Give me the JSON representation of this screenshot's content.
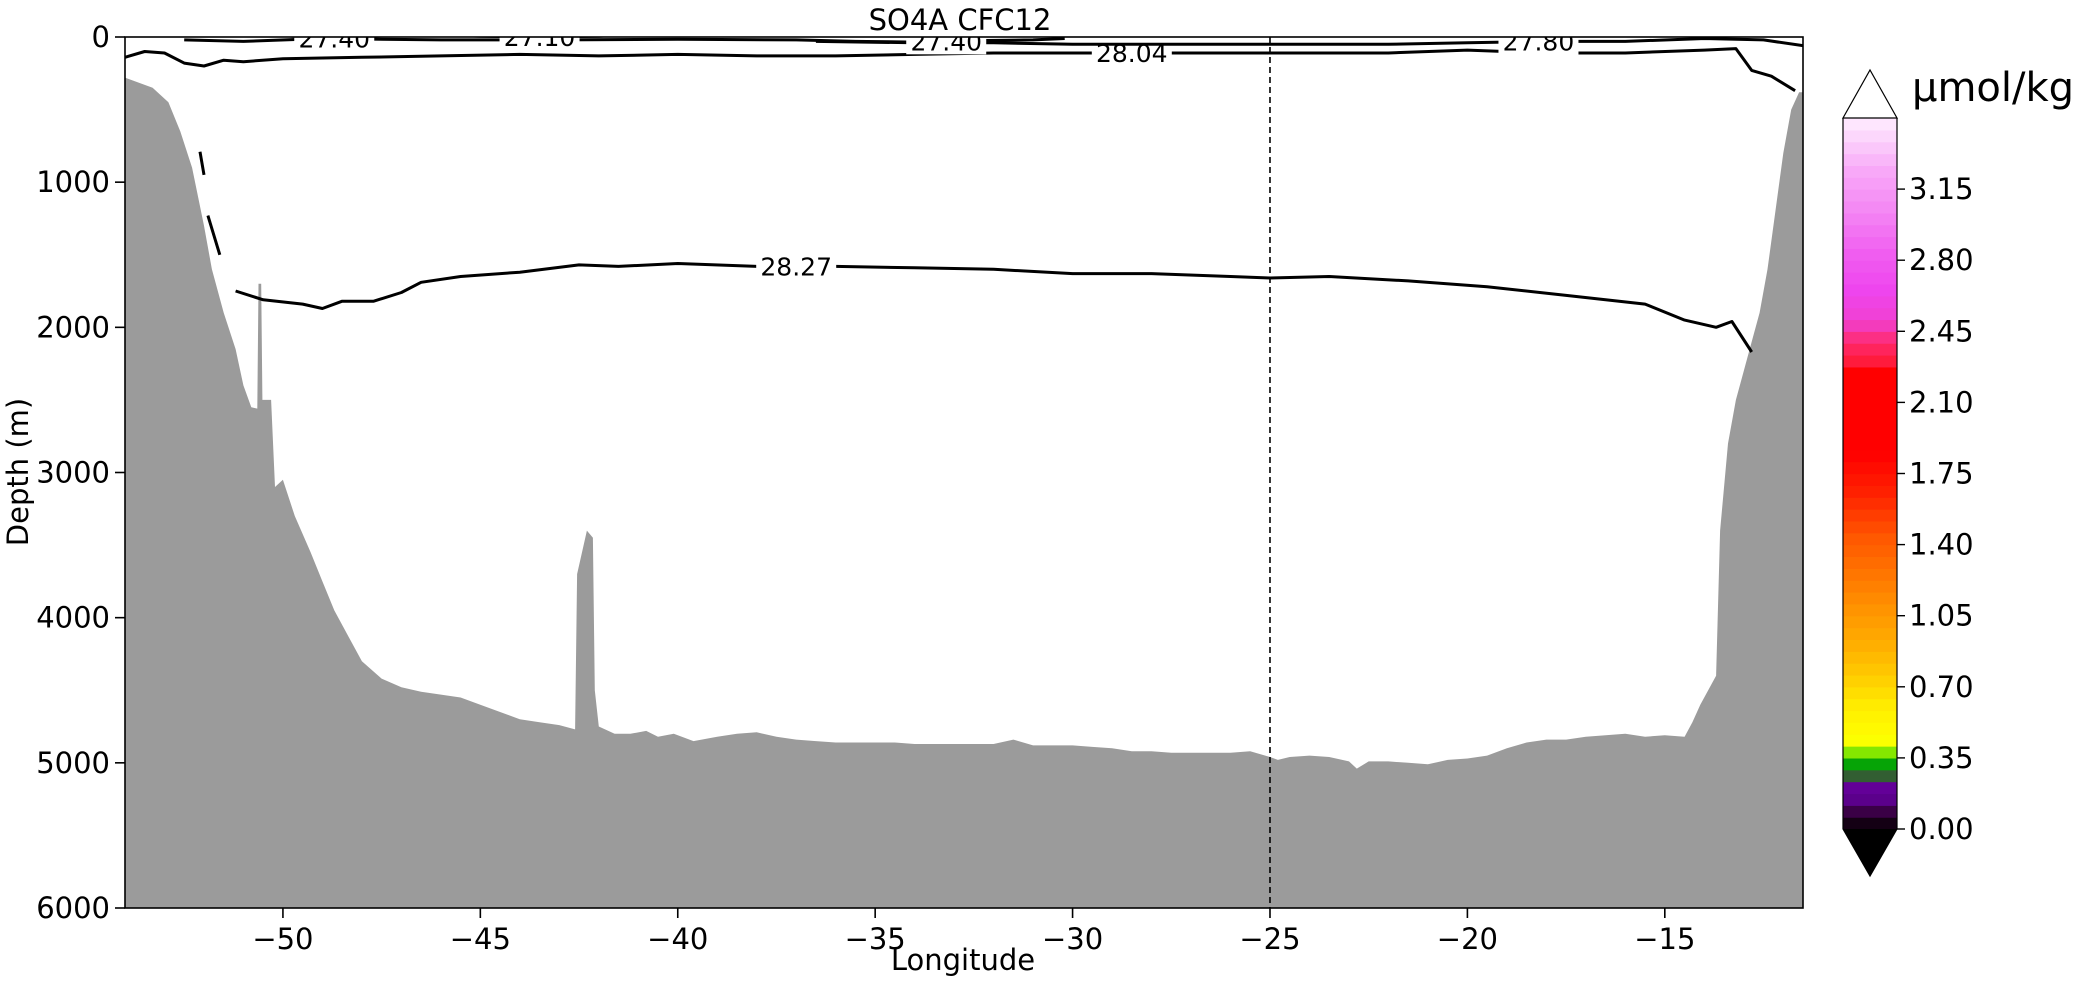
{
  "chart_data": {
    "type": "contour",
    "title": "SO4A CFC12",
    "xlabel": "Longitude",
    "ylabel": "Depth (m)",
    "xlim": [
      -54,
      -11.5
    ],
    "ylim": [
      6000,
      0
    ],
    "xticks": [
      -50,
      -45,
      -40,
      -35,
      -30,
      -25,
      -20,
      -15
    ],
    "xtick_labels": [
      "−50",
      "−45",
      "−40",
      "−35",
      "−30",
      "−25",
      "−20",
      "−15"
    ],
    "yticks": [
      0,
      1000,
      2000,
      3000,
      4000,
      5000,
      6000
    ],
    "ytick_labels": [
      "0",
      "1000",
      "2000",
      "3000",
      "4000",
      "5000",
      "6000"
    ],
    "reference_line": {
      "x": -25,
      "style": "dashed"
    },
    "bathymetry": {
      "color": "#9b9b9b",
      "points": [
        [
          -54.0,
          280
        ],
        [
          -53.3,
          350
        ],
        [
          -52.9,
          450
        ],
        [
          -52.6,
          650
        ],
        [
          -52.3,
          900
        ],
        [
          -52.0,
          1300
        ],
        [
          -51.8,
          1600
        ],
        [
          -51.5,
          1900
        ],
        [
          -51.2,
          2150
        ],
        [
          -51.0,
          2400
        ],
        [
          -50.8,
          2550
        ],
        [
          -50.65,
          2560
        ],
        [
          -50.62,
          1700
        ],
        [
          -50.55,
          1700
        ],
        [
          -50.52,
          2500
        ],
        [
          -50.3,
          2500
        ],
        [
          -50.2,
          3100
        ],
        [
          -50.0,
          3050
        ],
        [
          -49.7,
          3300
        ],
        [
          -49.3,
          3550
        ],
        [
          -49.0,
          3750
        ],
        [
          -48.7,
          3950
        ],
        [
          -48.3,
          4150
        ],
        [
          -48.0,
          4300
        ],
        [
          -47.5,
          4420
        ],
        [
          -47.0,
          4480
        ],
        [
          -46.5,
          4510
        ],
        [
          -46.0,
          4530
        ],
        [
          -45.5,
          4550
        ],
        [
          -45.0,
          4600
        ],
        [
          -44.5,
          4650
        ],
        [
          -44.0,
          4700
        ],
        [
          -43.5,
          4720
        ],
        [
          -43.0,
          4740
        ],
        [
          -42.6,
          4770
        ],
        [
          -42.55,
          3700
        ],
        [
          -42.3,
          3400
        ],
        [
          -42.15,
          3450
        ],
        [
          -42.1,
          4500
        ],
        [
          -42.0,
          4750
        ],
        [
          -41.6,
          4800
        ],
        [
          -41.2,
          4800
        ],
        [
          -40.8,
          4780
        ],
        [
          -40.5,
          4820
        ],
        [
          -40.1,
          4800
        ],
        [
          -39.6,
          4850
        ],
        [
          -39.0,
          4820
        ],
        [
          -38.5,
          4800
        ],
        [
          -38.0,
          4790
        ],
        [
          -37.5,
          4820
        ],
        [
          -37.0,
          4840
        ],
        [
          -36.5,
          4850
        ],
        [
          -36.0,
          4860
        ],
        [
          -35.5,
          4860
        ],
        [
          -35.0,
          4860
        ],
        [
          -34.5,
          4860
        ],
        [
          -34.0,
          4870
        ],
        [
          -33.5,
          4870
        ],
        [
          -33.0,
          4870
        ],
        [
          -32.5,
          4870
        ],
        [
          -32.0,
          4870
        ],
        [
          -31.5,
          4840
        ],
        [
          -31.0,
          4880
        ],
        [
          -30.5,
          4880
        ],
        [
          -30.0,
          4880
        ],
        [
          -29.5,
          4890
        ],
        [
          -29.0,
          4900
        ],
        [
          -28.5,
          4920
        ],
        [
          -28.0,
          4920
        ],
        [
          -27.5,
          4930
        ],
        [
          -27.0,
          4930
        ],
        [
          -26.5,
          4930
        ],
        [
          -26.0,
          4930
        ],
        [
          -25.5,
          4920
        ],
        [
          -25.0,
          4960
        ],
        [
          -24.8,
          4980
        ],
        [
          -24.5,
          4960
        ],
        [
          -24.0,
          4950
        ],
        [
          -23.5,
          4960
        ],
        [
          -23.0,
          4990
        ],
        [
          -22.8,
          5040
        ],
        [
          -22.5,
          4990
        ],
        [
          -22.0,
          4990
        ],
        [
          -21.5,
          5000
        ],
        [
          -21.0,
          5010
        ],
        [
          -20.5,
          4980
        ],
        [
          -20.0,
          4970
        ],
        [
          -19.5,
          4950
        ],
        [
          -19.0,
          4900
        ],
        [
          -18.5,
          4860
        ],
        [
          -18.0,
          4840
        ],
        [
          -17.5,
          4840
        ],
        [
          -17.0,
          4820
        ],
        [
          -16.5,
          4810
        ],
        [
          -16.0,
          4800
        ],
        [
          -15.5,
          4820
        ],
        [
          -15.0,
          4810
        ],
        [
          -14.5,
          4820
        ],
        [
          -14.3,
          4720
        ],
        [
          -14.1,
          4600
        ],
        [
          -13.9,
          4500
        ],
        [
          -13.7,
          4400
        ],
        [
          -13.6,
          3400
        ],
        [
          -13.4,
          2800
        ],
        [
          -13.2,
          2500
        ],
        [
          -13.0,
          2300
        ],
        [
          -12.8,
          2100
        ],
        [
          -12.6,
          1900
        ],
        [
          -12.4,
          1600
        ],
        [
          -12.2,
          1200
        ],
        [
          -12.0,
          800
        ],
        [
          -11.8,
          500
        ],
        [
          -11.6,
          380
        ],
        [
          -11.5,
          380
        ]
      ]
    },
    "contours": [
      {
        "level": "28.04",
        "label_x": -28.5,
        "points": [
          [
            -54,
            140
          ],
          [
            -53.5,
            100
          ],
          [
            -53,
            110
          ],
          [
            -52.5,
            180
          ],
          [
            -52,
            200
          ],
          [
            -51.5,
            160
          ],
          [
            -51,
            170
          ],
          [
            -50,
            150
          ],
          [
            -48,
            140
          ],
          [
            -46,
            130
          ],
          [
            -44,
            120
          ],
          [
            -42,
            130
          ],
          [
            -40,
            120
          ],
          [
            -38,
            130
          ],
          [
            -36,
            130
          ],
          [
            -34,
            120
          ],
          [
            -32,
            110
          ],
          [
            -30,
            110
          ],
          [
            -28,
            110
          ],
          [
            -26,
            110
          ],
          [
            -24,
            110
          ],
          [
            -22,
            110
          ],
          [
            -20,
            90
          ],
          [
            -18,
            110
          ],
          [
            -16,
            110
          ],
          [
            -14,
            90
          ],
          [
            -13.2,
            80
          ],
          [
            -12.8,
            230
          ],
          [
            -12.3,
            270
          ],
          [
            -11.7,
            370
          ]
        ]
      },
      {
        "level": "28.27",
        "label_x": -37,
        "points": [
          [
            -51.2,
            1750
          ],
          [
            -50.5,
            1810
          ],
          [
            -49.5,
            1840
          ],
          [
            -49.0,
            1870
          ],
          [
            -48.5,
            1820
          ],
          [
            -47.7,
            1820
          ],
          [
            -47.0,
            1760
          ],
          [
            -46.5,
            1690
          ],
          [
            -45.5,
            1650
          ],
          [
            -44.0,
            1620
          ],
          [
            -42.5,
            1570
          ],
          [
            -41.5,
            1580
          ],
          [
            -40.0,
            1560
          ],
          [
            -38.0,
            1580
          ],
          [
            -36.0,
            1580
          ],
          [
            -34.0,
            1590
          ],
          [
            -32.0,
            1600
          ],
          [
            -30.0,
            1630
          ],
          [
            -28.0,
            1630
          ],
          [
            -26.0,
            1650
          ],
          [
            -25.0,
            1660
          ],
          [
            -23.5,
            1650
          ],
          [
            -21.5,
            1680
          ],
          [
            -19.5,
            1720
          ],
          [
            -17.5,
            1780
          ],
          [
            -15.5,
            1840
          ],
          [
            -14.5,
            1950
          ],
          [
            -13.7,
            2000
          ],
          [
            -13.3,
            1960
          ],
          [
            -12.8,
            2170
          ]
        ]
      },
      {
        "level": "27.80",
        "label_x": -18.2,
        "points": [
          [
            -36.5,
            30
          ],
          [
            -34,
            40
          ],
          [
            -32,
            40
          ],
          [
            -30,
            50
          ],
          [
            -28,
            50
          ],
          [
            -26,
            50
          ],
          [
            -24,
            50
          ],
          [
            -22,
            50
          ],
          [
            -20,
            40
          ],
          [
            -18,
            30
          ],
          [
            -16,
            30
          ],
          [
            -14,
            10
          ],
          [
            -12.5,
            20
          ],
          [
            -11.5,
            60
          ]
        ]
      },
      {
        "level": "27.40",
        "label_x": -33.2,
        "points": [
          [
            -52.5,
            20
          ],
          [
            -51,
            30
          ],
          [
            -49,
            10
          ],
          [
            -46,
            20
          ],
          [
            -43,
            20
          ],
          [
            -40,
            15
          ],
          [
            -37,
            20
          ],
          [
            -35.5,
            30
          ],
          [
            -34,
            35
          ],
          [
            -32.5,
            25
          ],
          [
            -31,
            20
          ],
          [
            -30.2,
            10
          ]
        ]
      },
      {
        "level": "27.40",
        "label_x": -48.7,
        "points": [
          [
            -50.5,
            -20
          ],
          [
            -49.5,
            0
          ],
          [
            -48.7,
            10
          ],
          [
            -47.8,
            0
          ],
          [
            -47,
            -20
          ]
        ]
      },
      {
        "level": "27.10",
        "label_x": -43.5,
        "points": [
          [
            -46.5,
            -20
          ],
          [
            -45,
            -5
          ],
          [
            -43.5,
            0
          ],
          [
            -42,
            -5
          ],
          [
            -41,
            -20
          ]
        ]
      }
    ],
    "contour_dashed_segments": [
      [
        [
          -52.1,
          790
        ],
        [
          -52.0,
          950
        ]
      ],
      [
        [
          -51.9,
          1230
        ],
        [
          -51.6,
          1500
        ]
      ]
    ],
    "colorbar": {
      "unit": "µmol/kg",
      "vmin": 0,
      "vmax": 3.5,
      "extend": "both",
      "ticks": [
        0.0,
        0.35,
        0.7,
        1.05,
        1.4,
        1.75,
        2.1,
        2.45,
        2.8,
        3.15
      ],
      "tick_labels": [
        "0.00",
        "0.35",
        "0.70",
        "1.05",
        "1.40",
        "1.75",
        "2.10",
        "2.45",
        "2.80",
        "3.15"
      ],
      "stops": [
        [
          0.0,
          "#000000"
        ],
        [
          0.07,
          "#300030"
        ],
        [
          0.14,
          "#5a008a"
        ],
        [
          0.21,
          "#640099"
        ],
        [
          0.25,
          "#3e3e3e"
        ],
        [
          0.28,
          "#228b22"
        ],
        [
          0.33,
          "#00aa00"
        ],
        [
          0.37,
          "#66dd00"
        ],
        [
          0.4,
          "#ccff00"
        ],
        [
          0.44,
          "#ffff00"
        ],
        [
          0.6,
          "#ffee00"
        ],
        [
          0.75,
          "#ffcc00"
        ],
        [
          0.9,
          "#ffb000"
        ],
        [
          1.05,
          "#ff9900"
        ],
        [
          1.25,
          "#ff7700"
        ],
        [
          1.45,
          "#ff5500"
        ],
        [
          1.65,
          "#ff2200"
        ],
        [
          1.85,
          "#ff0000"
        ],
        [
          2.25,
          "#ff0000"
        ],
        [
          2.3,
          "#ff1a3a"
        ],
        [
          2.4,
          "#ff2a70"
        ],
        [
          2.5,
          "#f040d0"
        ],
        [
          2.65,
          "#ee44ee"
        ],
        [
          2.85,
          "#f060f0"
        ],
        [
          3.05,
          "#f488f4"
        ],
        [
          3.25,
          "#f8aaf8"
        ],
        [
          3.4,
          "#fbd4fb"
        ],
        [
          3.5,
          "#ffeeff"
        ]
      ]
    }
  }
}
